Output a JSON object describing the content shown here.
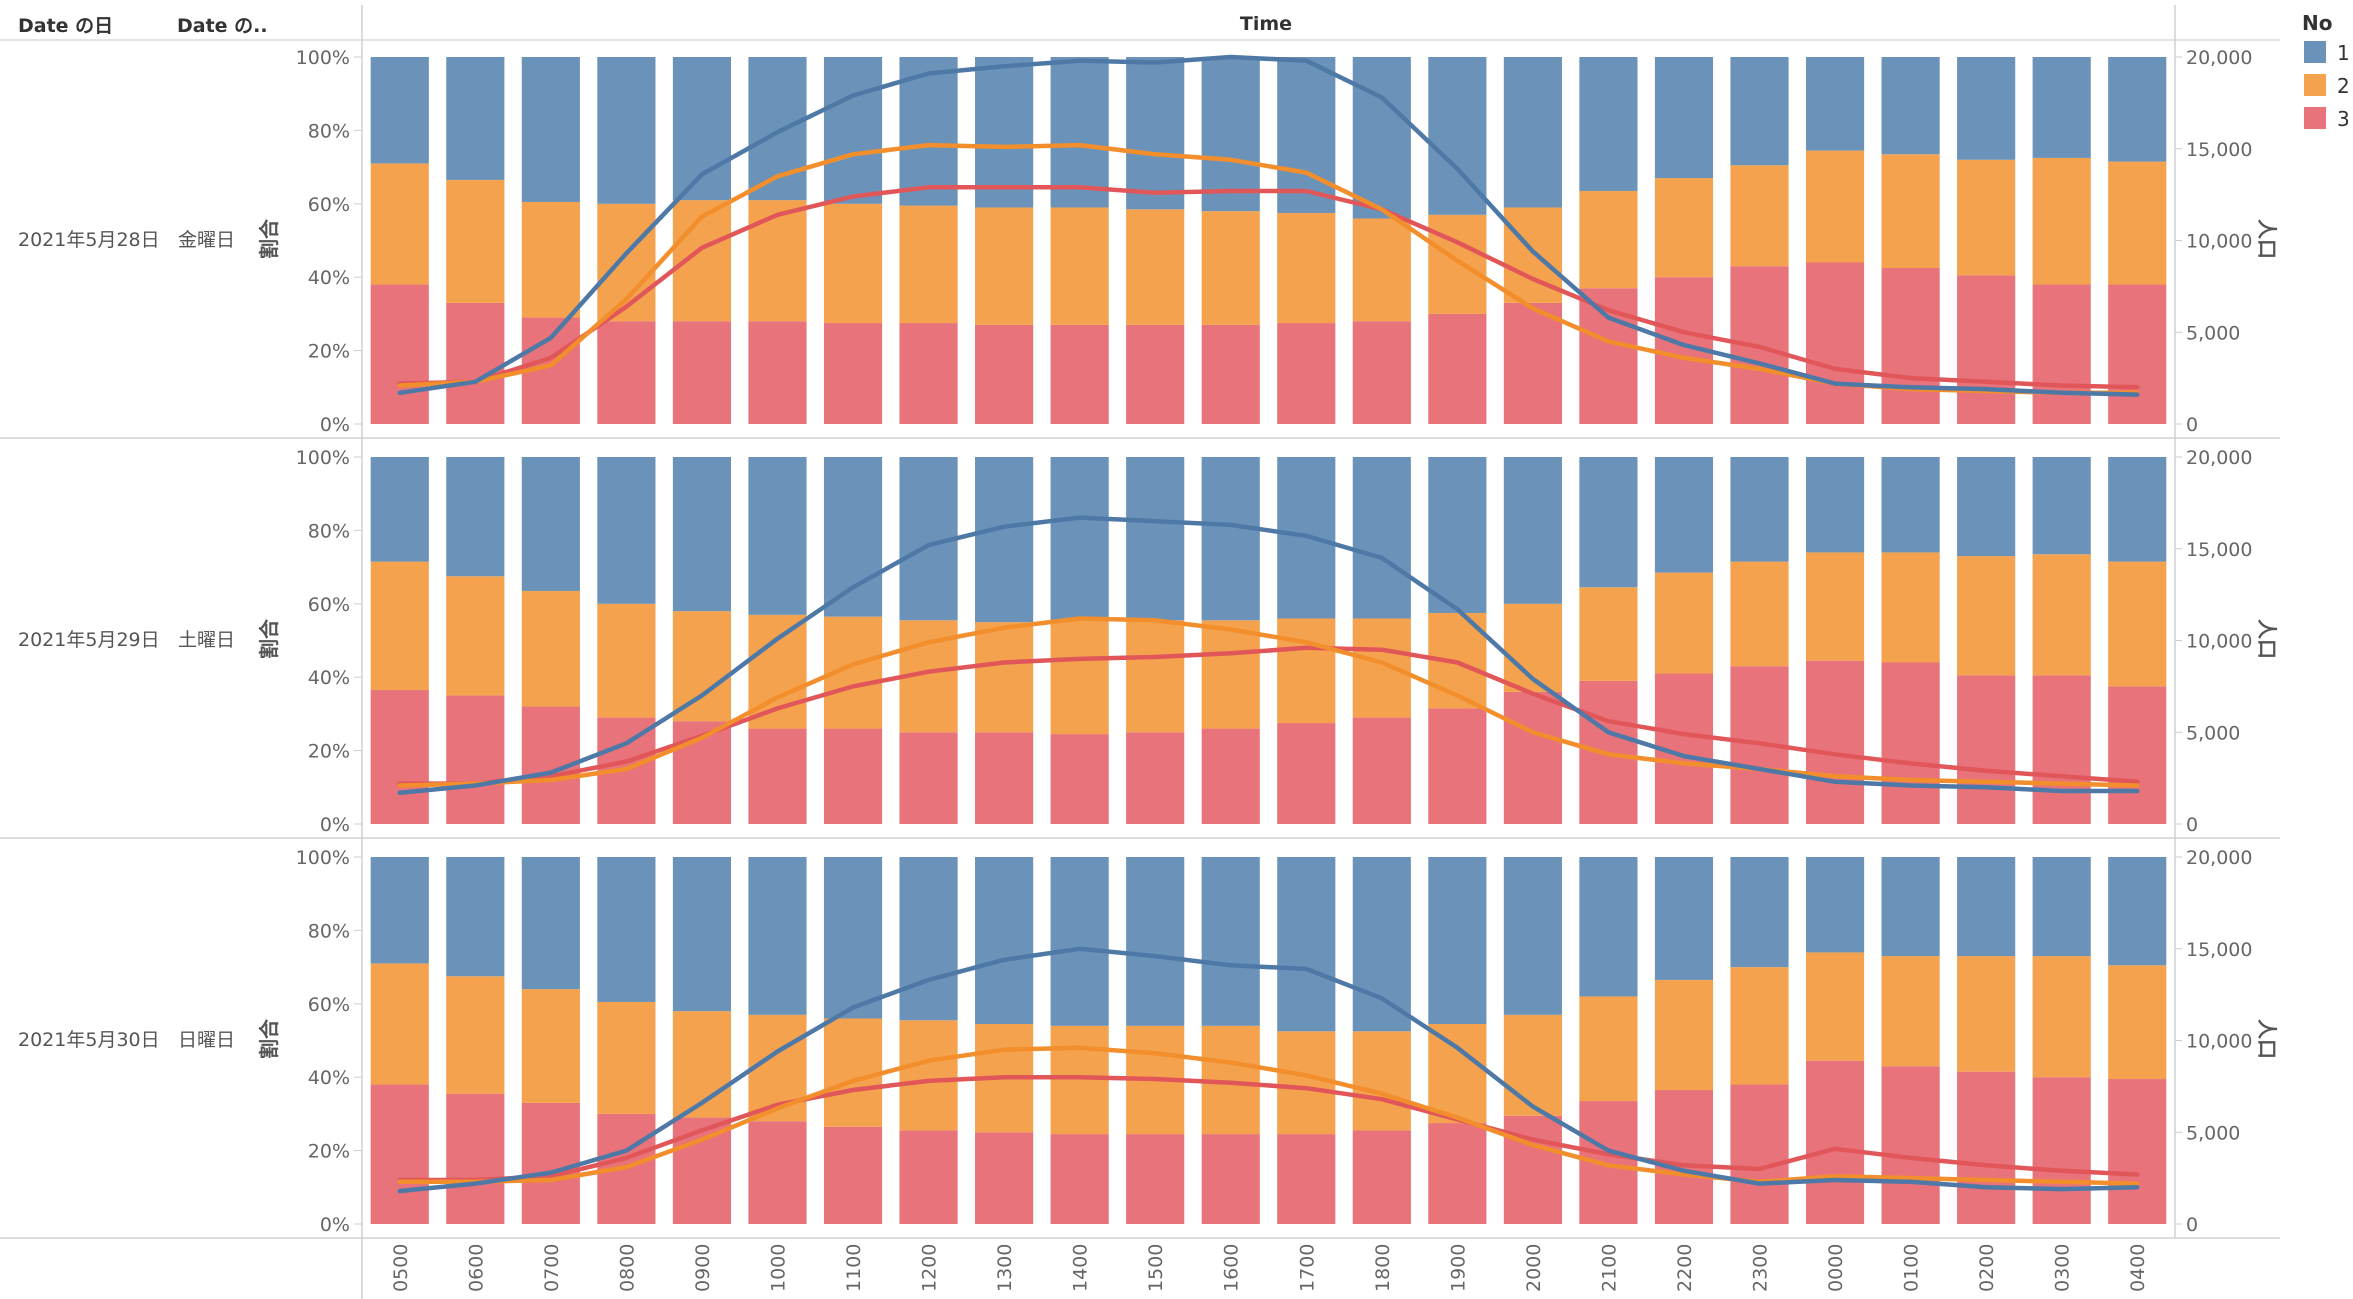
{
  "header": {
    "col_date_day": "Date の日",
    "col_date_weekday": "Date の..",
    "col_time": "Time"
  },
  "legend": {
    "title": "No",
    "items": [
      {
        "label": "1",
        "color": "#4E79A7"
      },
      {
        "label": "2",
        "color": "#F28E2B"
      },
      {
        "label": "3",
        "color": "#E15759"
      }
    ]
  },
  "axes": {
    "left_title": "割合",
    "right_title": "人口",
    "left_ticks": [
      "0%",
      "20%",
      "40%",
      "60%",
      "80%",
      "100%"
    ],
    "right_ticks": [
      "0",
      "5,000",
      "10,000",
      "15,000",
      "20,000"
    ]
  },
  "chart_data": {
    "type": "bar",
    "stacked": "percent",
    "overlay": "line",
    "categories": [
      "0500",
      "0600",
      "0700",
      "0800",
      "0900",
      "1000",
      "1100",
      "1200",
      "1300",
      "1400",
      "1500",
      "1600",
      "1700",
      "1800",
      "1900",
      "2000",
      "2100",
      "2200",
      "2300",
      "0000",
      "0100",
      "0200",
      "0300",
      "0400"
    ],
    "left_ylim": [
      0,
      100
    ],
    "right_ylim": [
      0,
      20000
    ],
    "panels": [
      {
        "date": "2021年5月28日",
        "weekday": "金曜日",
        "share_3": [
          38,
          33,
          29,
          28,
          28,
          28,
          27.5,
          27.5,
          27,
          27,
          27,
          27,
          27.5,
          28,
          30,
          33,
          37,
          40,
          43,
          44,
          42.5,
          40.5,
          38,
          38
        ],
        "share_2": [
          33,
          33.5,
          31.5,
          32,
          33,
          33,
          32.5,
          32,
          32,
          32,
          31.5,
          31,
          30,
          28,
          27,
          26,
          26.5,
          27,
          27.5,
          30.5,
          31,
          31.5,
          34.5,
          33.5
        ],
        "population": [
          {
            "name": "1",
            "values": [
              1700,
              2300,
              4700,
              9300,
              13600,
              15900,
              17900,
              19100,
              19500,
              19800,
              19700,
              20000,
              19800,
              17800,
              13900,
              9400,
              5800,
              4300,
              3300,
              2200,
              2000,
              1900,
              1700,
              1600
            ]
          },
          {
            "name": "2",
            "values": [
              2100,
              2300,
              3200,
              6800,
              11300,
              13500,
              14700,
              15200,
              15100,
              15200,
              14700,
              14400,
              13700,
              11700,
              8900,
              6300,
              4500,
              3600,
              3000,
              2200,
              1900,
              1800,
              1700,
              1700
            ]
          },
          {
            "name": "3",
            "values": [
              2200,
              2300,
              3600,
              6400,
              9600,
              11400,
              12400,
              12900,
              12900,
              12900,
              12600,
              12700,
              12700,
              11700,
              9900,
              7900,
              6200,
              5000,
              4200,
              3000,
              2500,
              2300,
              2100,
              2000
            ]
          }
        ]
      },
      {
        "date": "2021年5月29日",
        "weekday": "土曜日",
        "share_3": [
          36.5,
          35,
          32,
          29,
          28,
          26,
          26,
          25,
          25,
          24.5,
          25,
          26,
          27.5,
          29,
          31.5,
          36,
          39,
          41,
          43,
          44.5,
          44,
          40.5,
          40.5,
          37.5
        ],
        "share_2": [
          35,
          32.5,
          31.5,
          31,
          30,
          31,
          30.5,
          30.5,
          30,
          31,
          30.5,
          29.5,
          28.5,
          27,
          26,
          24,
          25.5,
          27.5,
          28.5,
          29.5,
          30,
          32.5,
          33,
          34
        ],
        "population": [
          {
            "name": "1",
            "values": [
              1700,
              2100,
              2800,
              4400,
              7000,
              10100,
              12900,
              15200,
              16200,
              16700,
              16500,
              16300,
              15700,
              14500,
              11700,
              7900,
              5000,
              3700,
              3000,
              2300,
              2100,
              2000,
              1800,
              1800
            ]
          },
          {
            "name": "2",
            "values": [
              2100,
              2200,
              2400,
              3000,
              4700,
              6900,
              8700,
              9900,
              10700,
              11200,
              11100,
              10600,
              9900,
              8800,
              7000,
              5000,
              3800,
              3300,
              3000,
              2600,
              2400,
              2300,
              2200,
              2100
            ]
          },
          {
            "name": "3",
            "values": [
              2200,
              2200,
              2600,
              3400,
              4800,
              6300,
              7500,
              8300,
              8800,
              9000,
              9100,
              9300,
              9600,
              9500,
              8800,
              7100,
              5600,
              4900,
              4400,
              3800,
              3300,
              2900,
              2600,
              2300
            ]
          }
        ]
      },
      {
        "date": "2021年5月30日",
        "weekday": "日曜日",
        "share_3": [
          38,
          35.5,
          33,
          30,
          29,
          28,
          26.5,
          25.5,
          25,
          24.5,
          24.5,
          24.5,
          24.5,
          25.5,
          27.5,
          29.5,
          33.5,
          36.5,
          38,
          44.5,
          43,
          41.5,
          40,
          39.5
        ],
        "share_2": [
          33,
          32,
          31,
          30.5,
          29,
          29,
          29.5,
          30,
          29.5,
          29.5,
          29.5,
          29.5,
          28,
          27,
          27,
          27.5,
          28.5,
          30,
          32,
          29.5,
          30,
          31.5,
          33,
          31
        ],
        "population": [
          {
            "name": "1",
            "values": [
              1800,
              2200,
              2800,
              4000,
              6600,
              9400,
              11800,
              13300,
              14400,
              15000,
              14600,
              14100,
              13900,
              12300,
              9600,
              6400,
              4000,
              2900,
              2200,
              2400,
              2300,
              2000,
              1900,
              2000
            ]
          },
          {
            "name": "2",
            "values": [
              2300,
              2300,
              2400,
              3100,
              4600,
              6300,
              7800,
              8900,
              9500,
              9600,
              9300,
              8800,
              8100,
              7100,
              5800,
              4300,
              3200,
              2700,
              2300,
              2600,
              2500,
              2400,
              2300,
              2200
            ]
          },
          {
            "name": "3",
            "values": [
              2400,
              2400,
              2600,
              3600,
              5100,
              6500,
              7300,
              7800,
              8000,
              8000,
              7900,
              7700,
              7400,
              6800,
              5700,
              4600,
              3800,
              3200,
              3000,
              4100,
              3600,
              3200,
              2900,
              2700
            ]
          }
        ]
      }
    ]
  }
}
